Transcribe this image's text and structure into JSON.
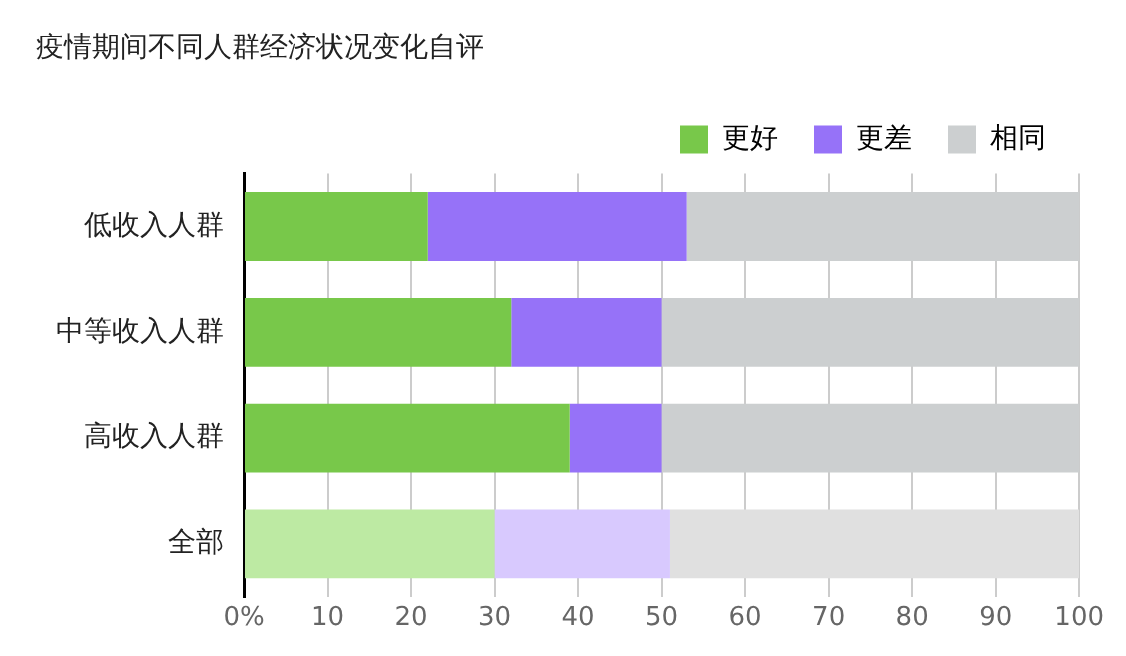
{
  "chart_data": {
    "type": "bar",
    "title": "疫情期间不同人群经济状况变化自评",
    "orientation": "horizontal",
    "stacked": true,
    "categories": [
      "低收入人群",
      "中等收入人群",
      "高收入人群",
      "全部"
    ],
    "series": [
      {
        "name": "更好",
        "color": "#78c84a",
        "colors": [
          "#78c84a",
          "#78c84a",
          "#78c84a",
          "#bdeaa3"
        ],
        "values": [
          22,
          32,
          39,
          30
        ]
      },
      {
        "name": "更差",
        "color": "#9672f8",
        "colors": [
          "#9672f8",
          "#9672f8",
          "#9672f8",
          "#d8c9fe"
        ],
        "values": [
          31,
          18,
          11,
          21
        ]
      },
      {
        "name": "相同",
        "color": "#cccfd0",
        "colors": [
          "#cccfd0",
          "#cccfd0",
          "#cccfd0",
          "#e0e0e0"
        ],
        "values": [
          47,
          50,
          50,
          49
        ]
      }
    ],
    "xlim": [
      0,
      100
    ],
    "xticks": [
      {
        "value": 0,
        "label": "0%"
      },
      10,
      20,
      30,
      40,
      50,
      60,
      70,
      80,
      90,
      100
    ],
    "grid": "x",
    "legend": "top right"
  }
}
